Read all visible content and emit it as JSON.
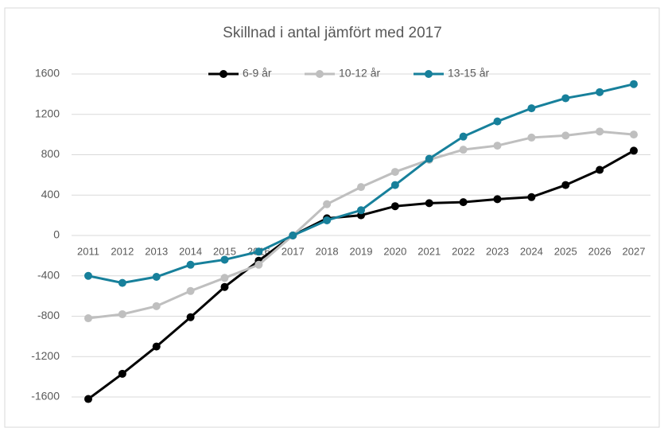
{
  "chart_data": {
    "type": "line",
    "title": "Skillnad i antal jämfört med 2017",
    "categories": [
      "2011",
      "2012",
      "2013",
      "2014",
      "2015",
      "2016",
      "2017",
      "2018",
      "2019",
      "2020",
      "2021",
      "2022",
      "2023",
      "2024",
      "2025",
      "2026",
      "2027"
    ],
    "series": [
      {
        "name": "6-9 år",
        "color": "#000000",
        "values": [
          -1620,
          -1370,
          -1100,
          -810,
          -510,
          -250,
          0,
          170,
          200,
          290,
          320,
          330,
          360,
          380,
          500,
          650,
          840
        ]
      },
      {
        "name": "10-12 år",
        "color": "#bfbfbf",
        "values": [
          -820,
          -780,
          -700,
          -550,
          -420,
          -290,
          0,
          310,
          480,
          630,
          750,
          850,
          890,
          970,
          990,
          1030,
          1000
        ]
      },
      {
        "name": "13-15 år",
        "color": "#17809b",
        "values": [
          -400,
          -470,
          -410,
          -290,
          -240,
          -160,
          0,
          150,
          250,
          500,
          760,
          980,
          1130,
          1260,
          1360,
          1420,
          1500
        ]
      }
    ],
    "ylim": [
      -1600,
      1600
    ],
    "yticks": [
      -1600,
      -1200,
      -800,
      -400,
      0,
      400,
      800,
      1200,
      1600
    ],
    "grid": true,
    "legend": "top"
  }
}
